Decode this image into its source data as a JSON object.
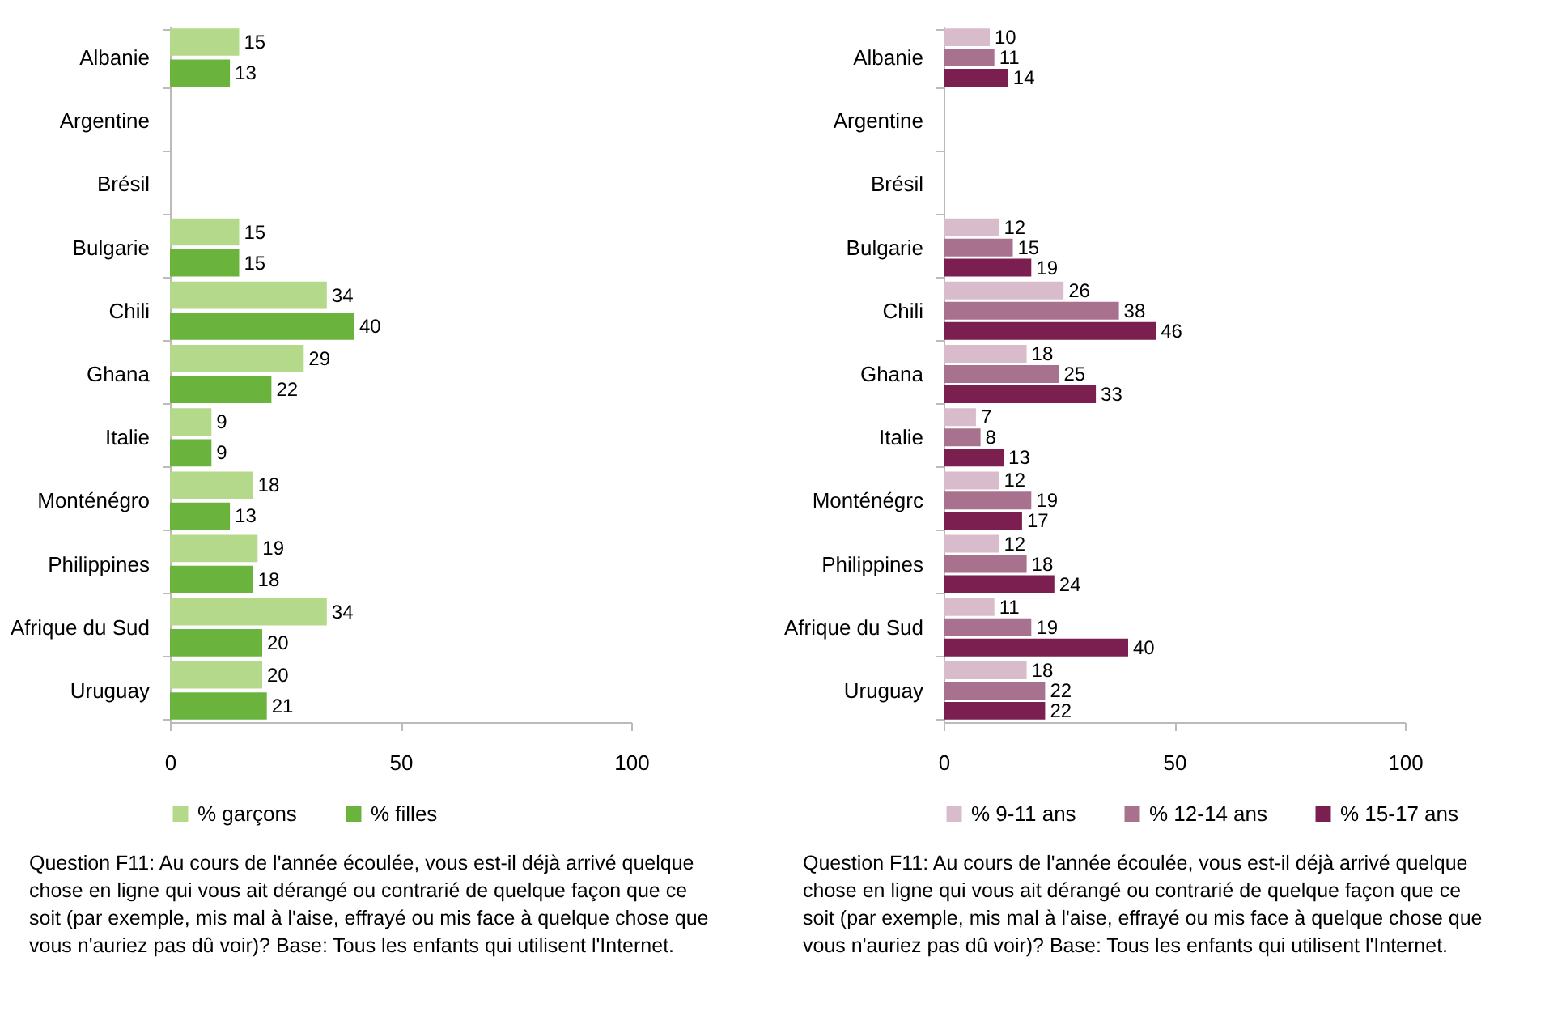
{
  "chart_data": [
    {
      "type": "bar",
      "orientation": "horizontal",
      "categories": [
        "Albanie",
        "Argentine",
        "Brésil",
        "Bulgarie",
        "Chili",
        "Ghana",
        "Italie",
        "Monténégro",
        "Philippines",
        "Afrique du Sud",
        "Uruguay"
      ],
      "series": [
        {
          "name": "% garçons",
          "color": "#b5d98a",
          "values": [
            15,
            null,
            null,
            15,
            34,
            29,
            9,
            18,
            19,
            34,
            20
          ]
        },
        {
          "name": "% filles",
          "color": "#6ab43e",
          "values": [
            13,
            null,
            null,
            15,
            40,
            22,
            9,
            13,
            18,
            20,
            21
          ]
        }
      ],
      "xlim": [
        0,
        100
      ],
      "xticks": [
        0,
        50,
        100
      ],
      "data_labels": true,
      "legend": "bottom",
      "annotations": [
        "Question F11: Au cours de l'année écoulée, vous est-il déjà arrivé quelque chose en ligne qui vous ait dérangé ou contrarié de quelque façon que ce soit (par exemple, mis mal à l'aise, effrayé ou mis face à quelque chose que vous n'auriez pas dû voir)? Base: Tous les enfants qui utilisent l'Internet."
      ]
    },
    {
      "type": "bar",
      "orientation": "horizontal",
      "categories": [
        "Albanie",
        "Argentine",
        "Brésil",
        "Bulgarie",
        "Chili",
        "Ghana",
        "Italie",
        "Monténégrc",
        "Philippines",
        "Afrique du Sud",
        "Uruguay"
      ],
      "series": [
        {
          "name": "% 9-11 ans",
          "color": "#d9bccb",
          "values": [
            10,
            null,
            null,
            12,
            26,
            18,
            7,
            12,
            12,
            11,
            18
          ]
        },
        {
          "name": "% 12-14 ans",
          "color": "#a8718e",
          "values": [
            11,
            null,
            null,
            15,
            38,
            25,
            8,
            19,
            18,
            19,
            22
          ]
        },
        {
          "name": "% 15-17 ans",
          "color": "#7a1f4f",
          "values": [
            14,
            null,
            null,
            19,
            46,
            33,
            13,
            17,
            24,
            40,
            22
          ]
        }
      ],
      "xlim": [
        0,
        100
      ],
      "xticks": [
        0,
        50,
        100
      ],
      "data_labels": true,
      "legend": "bottom",
      "annotations": [
        "Question F11: Au cours de l'année écoulée, vous est-il déjà arrivé quelque chose en ligne qui vous ait dérangé ou contrarié de quelque façon que ce soit (par exemple, mis mal à l'aise, effrayé ou mis face à quelque chose que vous n'auriez pas dû voir)? Base: Tous les enfants qui utilisent l'Internet."
      ]
    }
  ]
}
